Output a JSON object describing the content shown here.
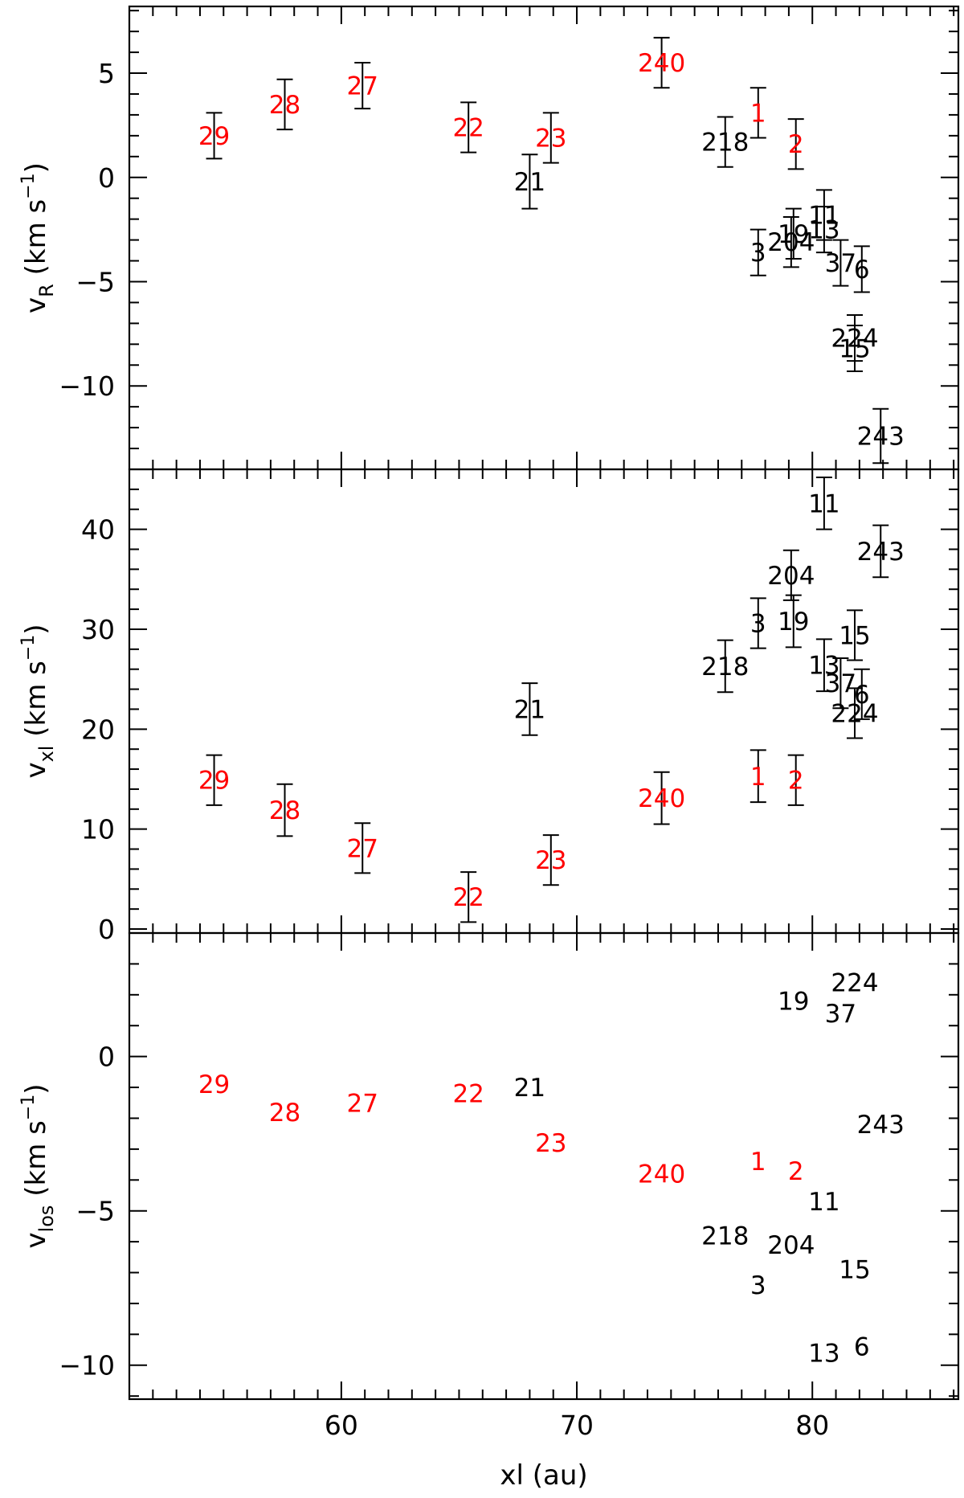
{
  "colors": {
    "highlight": "#ff0000",
    "default": "#000000",
    "axis": "#000000"
  },
  "chart_data": {
    "type": "scatter",
    "shared_x": {
      "label": "xl (au)",
      "lim": [
        51,
        86.2
      ],
      "ticks": [
        60,
        70,
        80
      ]
    },
    "panels": [
      {
        "id": "vR",
        "ylabel": {
          "main": "v",
          "sub": "R",
          "unit": "(km s",
          "sup": "−1",
          "close": ")"
        },
        "ylim": [
          -14,
          8.2
        ],
        "yticks": [
          5,
          0,
          -5,
          -10
        ],
        "ytick_labels": [
          "5",
          "0",
          "−5",
          "−10"
        ],
        "error_bars": true,
        "points": [
          {
            "id": "29",
            "x": 54.6,
            "y": 2.0,
            "err": 1.1,
            "red": true
          },
          {
            "id": "28",
            "x": 57.6,
            "y": 3.5,
            "err": 1.2,
            "red": true
          },
          {
            "id": "27",
            "x": 60.9,
            "y": 4.4,
            "err": 1.1,
            "red": true
          },
          {
            "id": "22",
            "x": 65.4,
            "y": 2.4,
            "err": 1.2,
            "red": true
          },
          {
            "id": "23",
            "x": 68.9,
            "y": 1.9,
            "err": 1.2,
            "red": true
          },
          {
            "id": "21",
            "x": 68.0,
            "y": -0.2,
            "err": 1.3,
            "red": false
          },
          {
            "id": "240",
            "x": 73.6,
            "y": 5.5,
            "err": 1.2,
            "red": true
          },
          {
            "id": "218",
            "x": 76.3,
            "y": 1.7,
            "err": 1.2,
            "red": false
          },
          {
            "id": "1",
            "x": 77.7,
            "y": 3.1,
            "err": 1.2,
            "red": true
          },
          {
            "id": "2",
            "x": 79.3,
            "y": 1.6,
            "err": 1.2,
            "red": true
          },
          {
            "id": "11",
            "x": 80.5,
            "y": -1.8,
            "err": 1.2,
            "red": false
          },
          {
            "id": "19",
            "x": 79.2,
            "y": -2.7,
            "err": 1.2,
            "red": false
          },
          {
            "id": "13",
            "x": 80.5,
            "y": -2.5,
            "err": 1.1,
            "red": false
          },
          {
            "id": "204",
            "x": 79.1,
            "y": -3.1,
            "err": 1.2,
            "red": false
          },
          {
            "id": "3",
            "x": 77.7,
            "y": -3.6,
            "err": 1.1,
            "red": false
          },
          {
            "id": "37",
            "x": 81.2,
            "y": -4.1,
            "err": 1.1,
            "red": false
          },
          {
            "id": "6",
            "x": 82.1,
            "y": -4.4,
            "err": 1.1,
            "red": false
          },
          {
            "id": "224",
            "x": 81.8,
            "y": -7.7,
            "err": 1.1,
            "red": false
          },
          {
            "id": "15",
            "x": 81.8,
            "y": -8.2,
            "err": 1.1,
            "red": false
          },
          {
            "id": "243",
            "x": 82.9,
            "y": -12.4,
            "err": 1.3,
            "red": false
          }
        ]
      },
      {
        "id": "vxl",
        "ylabel": {
          "main": "v",
          "sub": "xl",
          "unit": "(km s",
          "sup": "−1",
          "close": ")"
        },
        "ylim": [
          -0.4,
          46
        ],
        "yticks": [
          40,
          30,
          20,
          10,
          0
        ],
        "ytick_labels": [
          "40",
          "30",
          "20",
          "10",
          "0"
        ],
        "error_bars": true,
        "points": [
          {
            "id": "29",
            "x": 54.6,
            "y": 14.9,
            "err": 2.5,
            "red": true
          },
          {
            "id": "28",
            "x": 57.6,
            "y": 11.9,
            "err": 2.6,
            "red": true
          },
          {
            "id": "27",
            "x": 60.9,
            "y": 8.1,
            "err": 2.5,
            "red": true
          },
          {
            "id": "22",
            "x": 65.4,
            "y": 3.2,
            "err": 2.5,
            "red": true
          },
          {
            "id": "23",
            "x": 68.9,
            "y": 6.9,
            "err": 2.5,
            "red": true
          },
          {
            "id": "21",
            "x": 68.0,
            "y": 22.0,
            "err": 2.6,
            "red": false
          },
          {
            "id": "240",
            "x": 73.6,
            "y": 13.1,
            "err": 2.6,
            "red": true
          },
          {
            "id": "218",
            "x": 76.3,
            "y": 26.3,
            "err": 2.6,
            "red": false
          },
          {
            "id": "1",
            "x": 77.7,
            "y": 15.3,
            "err": 2.6,
            "red": true
          },
          {
            "id": "2",
            "x": 79.3,
            "y": 14.9,
            "err": 2.5,
            "red": true
          },
          {
            "id": "3",
            "x": 77.7,
            "y": 30.6,
            "err": 2.5,
            "red": false
          },
          {
            "id": "204",
            "x": 79.1,
            "y": 35.4,
            "err": 2.5,
            "red": false
          },
          {
            "id": "19",
            "x": 79.2,
            "y": 30.8,
            "err": 2.6,
            "red": false
          },
          {
            "id": "11",
            "x": 80.5,
            "y": 42.6,
            "err": 2.6,
            "red": false
          },
          {
            "id": "243",
            "x": 82.9,
            "y": 37.8,
            "err": 2.6,
            "red": false
          },
          {
            "id": "15",
            "x": 81.8,
            "y": 29.4,
            "err": 2.5,
            "red": false
          },
          {
            "id": "13",
            "x": 80.5,
            "y": 26.4,
            "err": 2.6,
            "red": false
          },
          {
            "id": "37",
            "x": 81.2,
            "y": 24.6,
            "err": 2.5,
            "red": false
          },
          {
            "id": "6",
            "x": 82.1,
            "y": 23.5,
            "err": 2.5,
            "red": false
          },
          {
            "id": "224",
            "x": 81.8,
            "y": 21.6,
            "err": 2.5,
            "red": false
          }
        ]
      },
      {
        "id": "vlos",
        "ylabel": {
          "main": "v",
          "sub": "los",
          "unit": "(km s",
          "sup": "−1",
          "close": ")"
        },
        "ylim": [
          -11.1,
          4.0
        ],
        "yticks": [
          0,
          -5,
          -10
        ],
        "ytick_labels": [
          "0",
          "−5",
          "−10"
        ],
        "error_bars": false,
        "points": [
          {
            "id": "29",
            "x": 54.6,
            "y": -0.9,
            "red": true
          },
          {
            "id": "28",
            "x": 57.6,
            "y": -1.8,
            "red": true
          },
          {
            "id": "27",
            "x": 60.9,
            "y": -1.5,
            "red": true
          },
          {
            "id": "22",
            "x": 65.4,
            "y": -1.2,
            "red": true
          },
          {
            "id": "21",
            "x": 68.0,
            "y": -1.0,
            "red": false
          },
          {
            "id": "23",
            "x": 68.9,
            "y": -2.8,
            "red": true
          },
          {
            "id": "240",
            "x": 73.6,
            "y": -3.8,
            "red": true
          },
          {
            "id": "1",
            "x": 77.7,
            "y": -3.4,
            "red": true
          },
          {
            "id": "2",
            "x": 79.3,
            "y": -3.7,
            "red": true
          },
          {
            "id": "224",
            "x": 81.8,
            "y": 2.4,
            "red": false
          },
          {
            "id": "19",
            "x": 79.2,
            "y": 1.8,
            "red": false
          },
          {
            "id": "37",
            "x": 81.2,
            "y": 1.4,
            "red": false
          },
          {
            "id": "243",
            "x": 82.9,
            "y": -2.2,
            "red": false
          },
          {
            "id": "11",
            "x": 80.5,
            "y": -4.7,
            "red": false
          },
          {
            "id": "218",
            "x": 76.3,
            "y": -5.8,
            "red": false
          },
          {
            "id": "204",
            "x": 79.1,
            "y": -6.1,
            "red": false
          },
          {
            "id": "15",
            "x": 81.8,
            "y": -6.9,
            "red": false
          },
          {
            "id": "3",
            "x": 77.7,
            "y": -7.4,
            "red": false
          },
          {
            "id": "6",
            "x": 82.1,
            "y": -9.4,
            "red": false
          },
          {
            "id": "13",
            "x": 80.5,
            "y": -9.6,
            "red": false
          }
        ]
      }
    ]
  }
}
